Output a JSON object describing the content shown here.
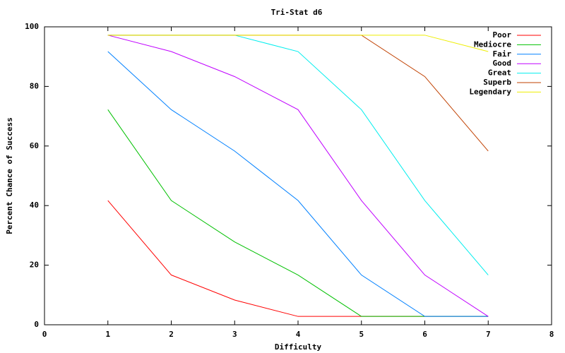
{
  "chart_data": {
    "type": "line",
    "title": "Tri-Stat d6",
    "x_label": "Difficulty",
    "y_label": "Percent Chance of Success",
    "x": [
      1,
      2,
      3,
      4,
      5,
      6,
      7
    ],
    "xlim": [
      0,
      8
    ],
    "xticks": [
      0,
      1,
      2,
      3,
      4,
      5,
      6,
      7,
      8
    ],
    "ylim": [
      0,
      100
    ],
    "yticks": [
      0,
      20,
      40,
      60,
      80,
      100
    ],
    "legend": "top-right",
    "grid": false,
    "series": [
      {
        "name": "Poor",
        "color": "#ff0000",
        "values": [
          41.7,
          16.7,
          8.3,
          2.8,
          2.8,
          2.8,
          2.8
        ]
      },
      {
        "name": "Mediocre",
        "color": "#00c000",
        "values": [
          72.2,
          41.7,
          27.8,
          16.7,
          2.8,
          2.8,
          2.8
        ]
      },
      {
        "name": "Fair",
        "color": "#0080ff",
        "values": [
          91.7,
          72.2,
          58.3,
          41.7,
          16.7,
          2.8,
          2.8
        ]
      },
      {
        "name": "Good",
        "color": "#c000ff",
        "values": [
          97.2,
          91.7,
          83.3,
          72.2,
          41.7,
          16.7,
          2.8
        ]
      },
      {
        "name": "Great",
        "color": "#00eeee",
        "values": [
          97.2,
          97.2,
          97.2,
          91.7,
          72.2,
          41.7,
          16.7
        ]
      },
      {
        "name": "Superb",
        "color": "#c04000",
        "values": [
          97.2,
          97.2,
          97.2,
          97.2,
          97.2,
          83.3,
          58.3
        ]
      },
      {
        "name": "Legendary",
        "color": "#eeee00",
        "values": [
          97.2,
          97.2,
          97.2,
          97.2,
          97.2,
          97.2,
          91.7
        ]
      }
    ]
  }
}
